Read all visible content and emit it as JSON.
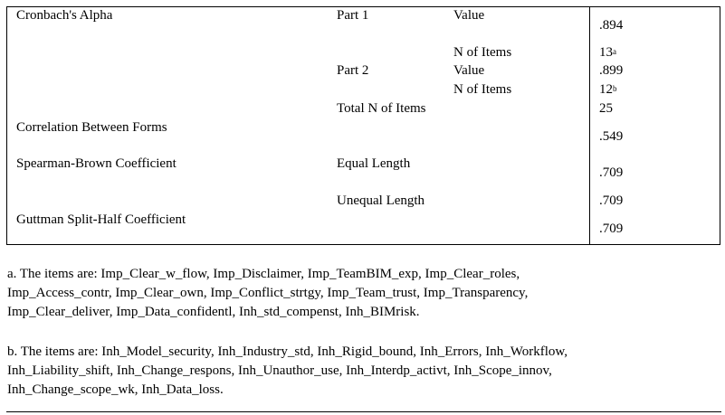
{
  "table": {
    "rows": {
      "cronbach": "Cronbach's Alpha",
      "part1": "Part 1",
      "part1_value_label": "Value",
      "part1_value": ".894",
      "part1_n_label": "N of Items",
      "part1_n": "13",
      "part1_n_note": "a",
      "part2": "Part 2",
      "part2_value_label": "Value",
      "part2_value": ".899",
      "part2_n_label": "N of Items",
      "part2_n": "12",
      "part2_n_note": "b",
      "total_label": "Total N of Items",
      "total": "25",
      "correlation": "Correlation Between Forms",
      "correlation_value": ".549",
      "spearman": "Spearman-Brown Coefficient",
      "equal_label": "Equal Length",
      "equal_value": ".709",
      "unequal_label": "Unequal Length",
      "unequal_value": ".709",
      "guttman": "Guttman Split-Half Coefficient",
      "guttman_value": ".709"
    }
  },
  "footnotes": {
    "a": [
      "a. The items are: Imp_Clear_w_flow, Imp_Disclaimer, Imp_TeamBIM_exp, Imp_Clear_roles,",
      "Imp_Access_contr, Imp_Clear_own, Imp_Conflict_strtgy, Imp_Team_trust, Imp_Transparency,",
      "Imp_Clear_deliver, Imp_Data_confidentl, Inh_std_compenst, Inh_BIMrisk."
    ],
    "b": [
      "b. The items are: Inh_Model_security, Inh_Industry_std, Inh_Rigid_bound, Inh_Errors, Inh_Workflow,",
      "Inh_Liability_shift, Inh_Change_respons, Inh_Unauthor_use, Inh_Interdp_activt, Inh_Scope_innov,",
      "Inh_Change_scope_wk, Inh_Data_loss."
    ]
  }
}
